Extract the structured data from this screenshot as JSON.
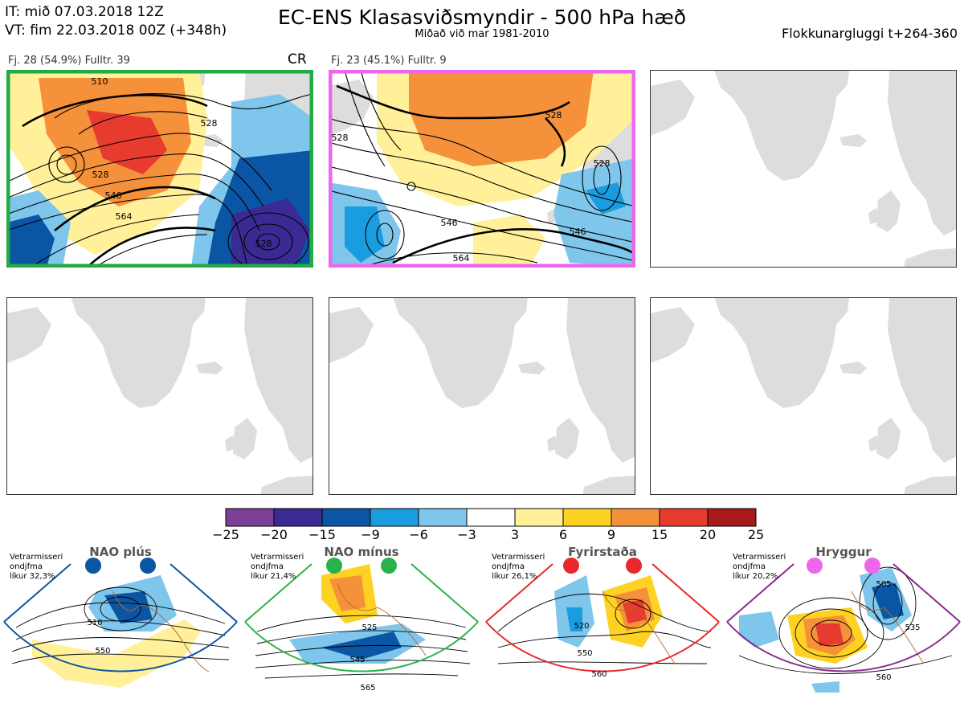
{
  "header": {
    "it_line": "IT: mið 07.03.2018 12Z",
    "vt_line": "VT: fim 22.03.2018 00Z  (+348h)",
    "title": "EC-ENS Klasasviðsmyndir - 500 hPa hæð",
    "subtitle": "Miðað við mar 1981-2010",
    "window": "Flokkunargluggi t+264-360"
  },
  "panels": [
    {
      "label": "Fj. 28 (54.9%)   Fulltr. 39",
      "tag": "CR",
      "border": "#22aa44",
      "contours": [
        "510",
        "528",
        "528",
        "546",
        "564",
        "528"
      ]
    },
    {
      "label": "Fj. 23 (45.1%)   Fulltr. 9",
      "tag": "",
      "border": "#ee66ee",
      "contours": [
        "528",
        "528",
        "528",
        "546",
        "546",
        "564"
      ]
    }
  ],
  "colorbar": {
    "ticks": [
      "−25",
      "−20",
      "−15",
      "−9",
      "−6",
      "−3",
      "3",
      "6",
      "9",
      "15",
      "20",
      "25"
    ],
    "colors": [
      "#7b3f98",
      "#3a2a94",
      "#0b56a4",
      "#1a9de0",
      "#7fc6ec",
      "#ffffff",
      "#fff099",
      "#fdd223",
      "#f5913a",
      "#e63b2e",
      "#a71a1a"
    ]
  },
  "regimes": [
    {
      "name": "NAO plús",
      "info": [
        "Vetrarmisseri",
        "ondjfma",
        "líkur 32,3%"
      ],
      "color": "#0b56a4",
      "labels": [
        "510",
        "550"
      ]
    },
    {
      "name": "NAO mínus",
      "info": [
        "Vetrarmisseri",
        "ondjfma",
        "líkur 21,4%"
      ],
      "color": "#2ab24a",
      "labels": [
        "525",
        "545",
        "565"
      ]
    },
    {
      "name": "Fyrirstaða",
      "info": [
        "Vetrarmisseri",
        "ondjfma",
        "líkur 26,1%"
      ],
      "color": "#e8282a",
      "labels": [
        "520",
        "550",
        "560"
      ]
    },
    {
      "name": "Hryggur",
      "info": [
        "Vetrarmisseri",
        "ondjfma",
        "líkur 20,2%"
      ],
      "color": "#ee66ee",
      "labels": [
        "505",
        "535",
        "560"
      ]
    }
  ]
}
